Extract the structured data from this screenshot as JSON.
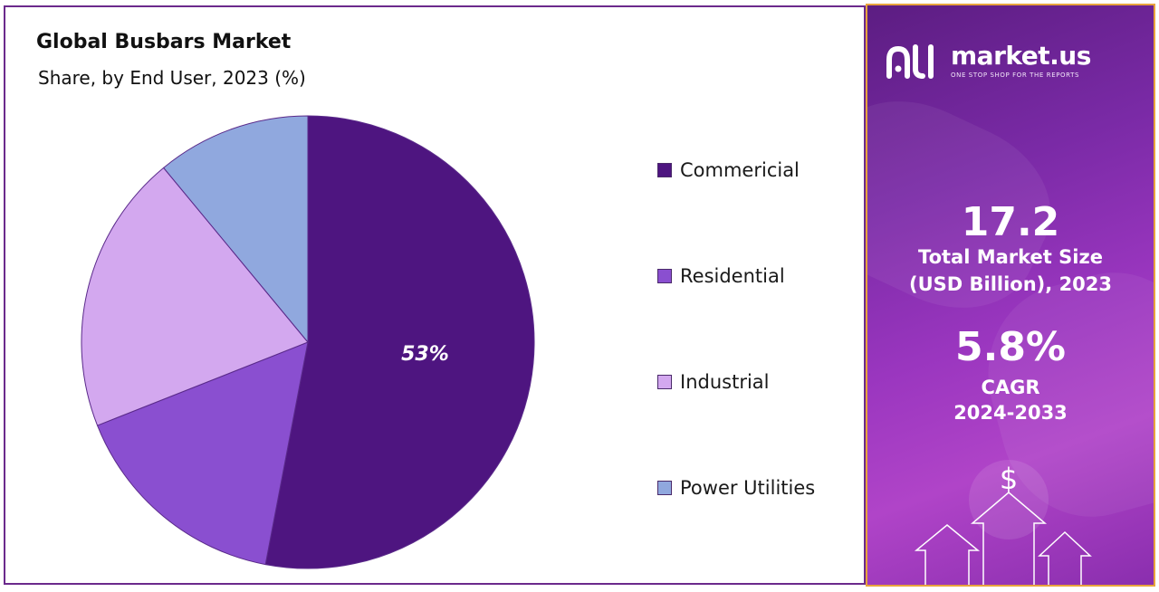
{
  "chart_data": {
    "type": "pie",
    "title": "Global Busbars Market",
    "subtitle": "Share, by End User, 2023 (%)",
    "categories": [
      "Commericial",
      "Residential",
      "Industrial",
      "Power Utilities"
    ],
    "values": [
      53,
      16,
      20,
      11
    ],
    "data_labels": [
      "53%",
      "",
      "",
      ""
    ],
    "colors": [
      "#4e1580",
      "#8a4fd0",
      "#d3a8ef",
      "#90a8de"
    ],
    "legend_position": "right",
    "start_angle": "12 o'clock, clockwise"
  },
  "side_panel": {
    "brand_name": "market.us",
    "brand_tagline": "ONE STOP SHOP FOR THE REPORTS",
    "market_size": "17.2",
    "market_size_label_1": "Total Market Size",
    "market_size_label_2": "(USD Billion), 2023",
    "cagr_value": "5.8%",
    "cagr_label_1": "CAGR",
    "cagr_label_2": "2024-2033",
    "currency_symbol": "$",
    "colors": {
      "panel_top": "#5c1d82",
      "panel_bottom": "#b044c8",
      "border": "#e8a33d"
    }
  }
}
